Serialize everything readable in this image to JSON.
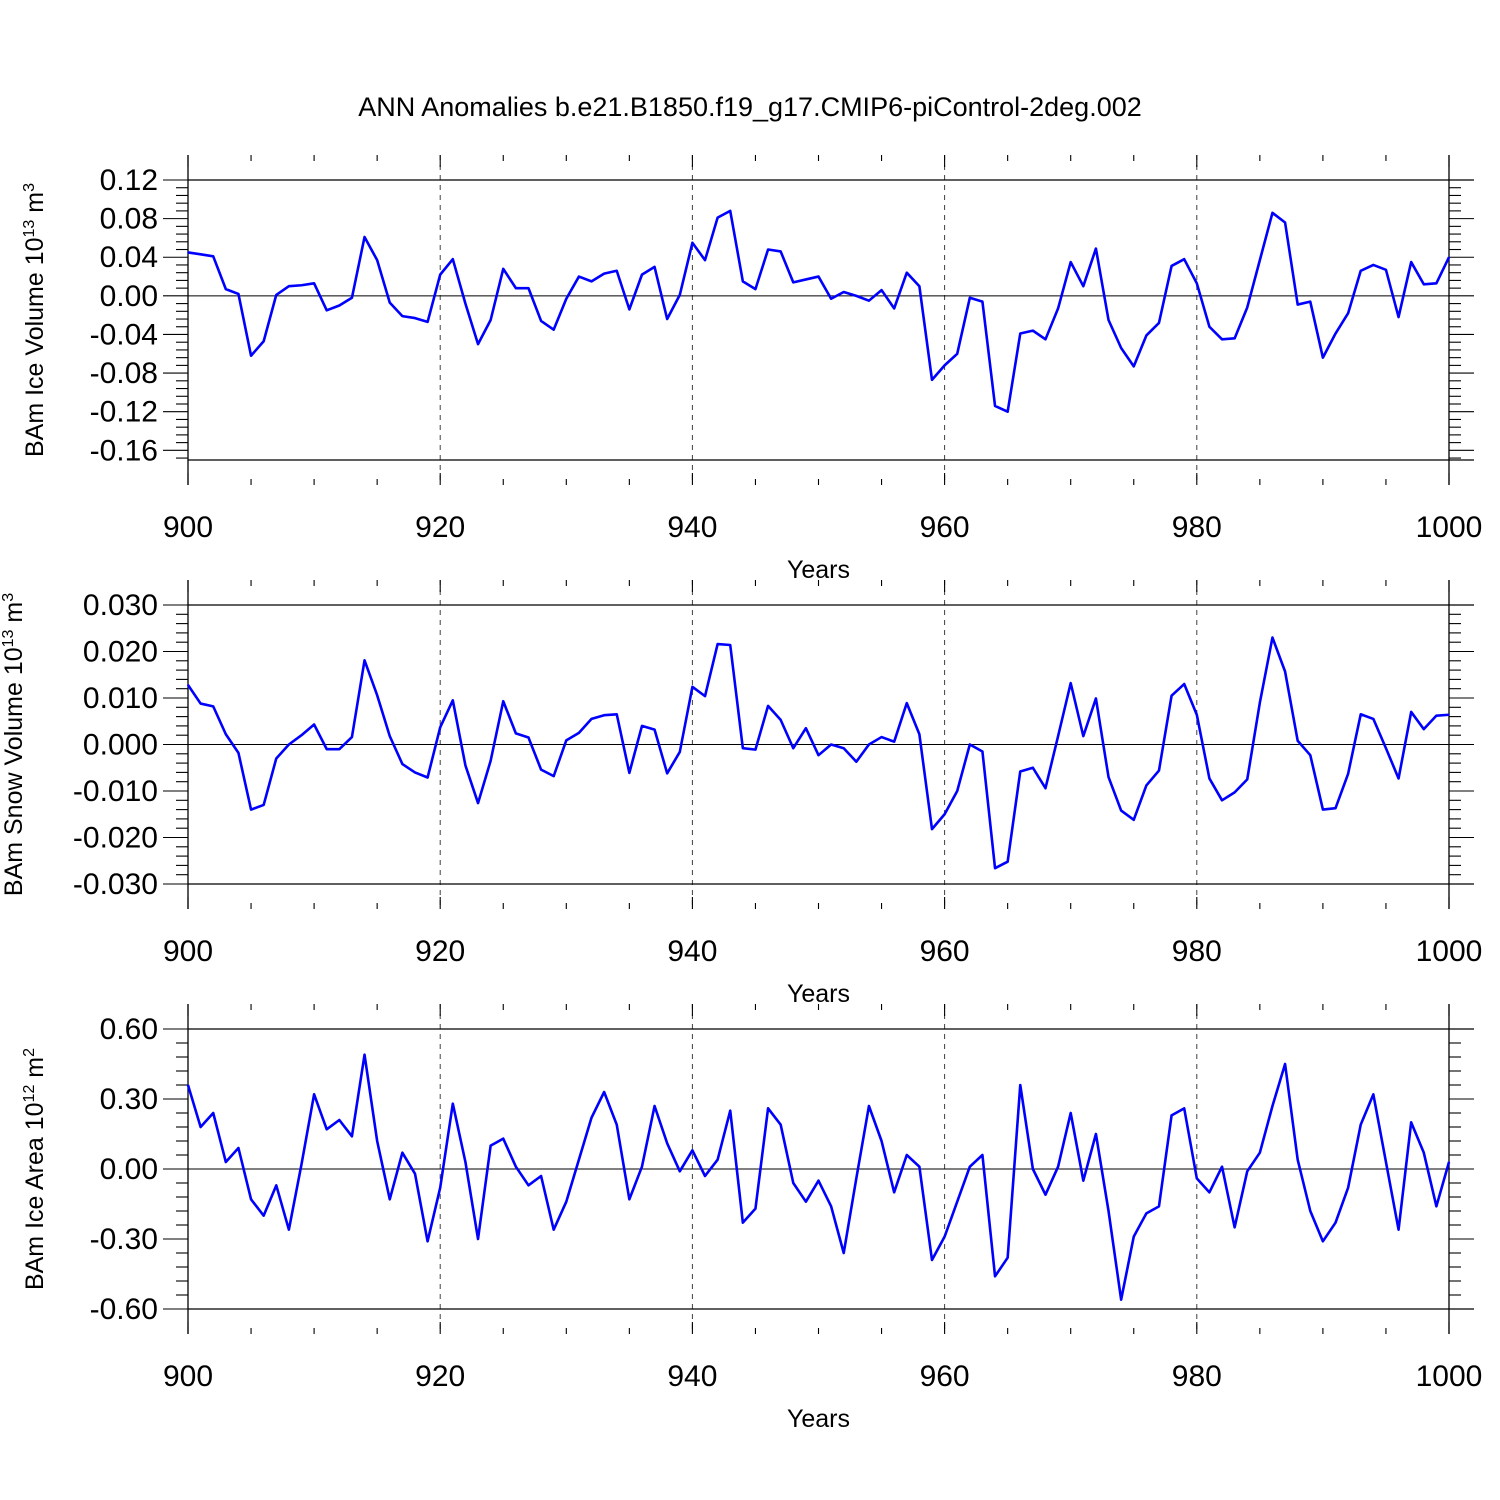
{
  "title": "ANN Anomalies b.e21.B1850.f19_g17.CMIP6-piControl-2deg.002",
  "chart_data": [
    {
      "type": "line",
      "ylabel_main": "BAm Ice Volume 10",
      "ylabel_exp": "13",
      "ylabel_unit": " m",
      "ylabel_unit_exp": "3",
      "xlabel": "Years",
      "xlim": [
        900,
        1000
      ],
      "ylim": [
        -0.17,
        0.12
      ],
      "yticks": [
        0.12,
        0.08,
        0.04,
        0.0,
        -0.04,
        -0.08,
        -0.12,
        -0.16
      ],
      "ytick_labels": [
        "0.12",
        "0.08",
        "0.04",
        "0.00",
        "-0.04",
        "-0.08",
        "-0.12",
        "-0.16"
      ],
      "xticks": [
        900,
        920,
        940,
        960,
        980,
        1000
      ],
      "xtick_labels": [
        "900",
        "920",
        "940",
        "960",
        "980",
        "1000"
      ],
      "series": [
        {
          "name": "BAm Ice Volume",
          "color": "#0000ff",
          "x_start": 900,
          "values": [
            0.045,
            0.043,
            0.041,
            0.007,
            0.002,
            -0.062,
            -0.047,
            0.001,
            0.01,
            0.011,
            0.013,
            -0.015,
            -0.01,
            -0.002,
            0.061,
            0.037,
            -0.007,
            -0.021,
            -0.023,
            -0.027,
            0.022,
            0.038,
            -0.008,
            -0.05,
            -0.025,
            0.028,
            0.008,
            0.008,
            -0.026,
            -0.035,
            -0.003,
            0.02,
            0.015,
            0.023,
            0.026,
            -0.014,
            0.022,
            0.03,
            -0.024,
            0.001,
            0.055,
            0.037,
            0.081,
            0.088,
            0.015,
            0.007,
            0.048,
            0.046,
            0.014,
            0.017,
            0.02,
            -0.003,
            0.004,
            0.0,
            -0.005,
            0.006,
            -0.013,
            0.024,
            0.01,
            -0.087,
            -0.072,
            -0.06,
            -0.002,
            -0.006,
            -0.114,
            -0.12,
            -0.039,
            -0.036,
            -0.045,
            -0.013,
            0.035,
            0.01,
            0.049,
            -0.025,
            -0.054,
            -0.073,
            -0.041,
            -0.028,
            0.031,
            0.038,
            0.013,
            -0.032,
            -0.045,
            -0.044,
            -0.012,
            0.037,
            0.086,
            0.076,
            -0.009,
            -0.006,
            -0.064,
            -0.039,
            -0.018,
            0.026,
            0.032,
            0.027,
            -0.022,
            0.035,
            0.012,
            0.013,
            0.04
          ]
        }
      ]
    },
    {
      "type": "line",
      "ylabel_main": "BAm Snow Volume 10",
      "ylabel_exp": "13",
      "ylabel_unit": " m",
      "ylabel_unit_exp": "3",
      "xlabel": "Years",
      "xlim": [
        900,
        1000
      ],
      "ylim": [
        -0.03,
        0.03
      ],
      "yticks": [
        0.03,
        0.02,
        0.01,
        0.0,
        -0.01,
        -0.02,
        -0.03
      ],
      "ytick_labels": [
        "0.030",
        "0.020",
        "0.010",
        "0.000",
        "-0.010",
        "-0.020",
        "-0.030"
      ],
      "xticks": [
        900,
        920,
        940,
        960,
        980,
        1000
      ],
      "xtick_labels": [
        "900",
        "920",
        "940",
        "960",
        "980",
        "1000"
      ],
      "series": [
        {
          "name": "BAm Snow Volume",
          "color": "#0000ff",
          "x_start": 900,
          "values": [
            0.0128,
            0.0088,
            0.0082,
            0.0022,
            -0.0018,
            -0.014,
            -0.013,
            -0.003,
            0.0,
            0.002,
            0.0043,
            -0.001,
            -0.001,
            0.0016,
            0.0181,
            0.0106,
            0.0018,
            -0.0042,
            -0.006,
            -0.0071,
            0.0037,
            0.0095,
            -0.0045,
            -0.0126,
            -0.0035,
            0.0093,
            0.0024,
            0.0015,
            -0.0054,
            -0.0068,
            0.0009,
            0.0025,
            0.0055,
            0.0063,
            0.0065,
            -0.0061,
            0.004,
            0.0032,
            -0.0062,
            -0.0016,
            0.0124,
            0.0104,
            0.0216,
            0.0214,
            -0.0008,
            -0.0011,
            0.0083,
            0.0053,
            -0.0008,
            0.0035,
            -0.0023,
            0.0,
            -0.0008,
            -0.0037,
            0.0,
            0.0016,
            0.0006,
            0.0089,
            0.0022,
            -0.0182,
            -0.015,
            -0.01,
            0.0,
            -0.0015,
            -0.0266,
            -0.0252,
            -0.0058,
            -0.005,
            -0.0094,
            0.0018,
            0.0132,
            0.0018,
            0.0099,
            -0.007,
            -0.0142,
            -0.0162,
            -0.0088,
            -0.0056,
            0.0105,
            0.013,
            0.0064,
            -0.0073,
            -0.012,
            -0.0103,
            -0.0075,
            0.009,
            0.023,
            0.0157,
            0.0008,
            -0.0023,
            -0.014,
            -0.0137,
            -0.0063,
            0.0065,
            0.0055,
            -0.0008,
            -0.0073,
            0.007,
            0.0033,
            0.0062,
            0.0064
          ]
        }
      ]
    },
    {
      "type": "line",
      "ylabel_main": "BAm Ice Area 10",
      "ylabel_exp": "12",
      "ylabel_unit": " m",
      "ylabel_unit_exp": "2",
      "xlabel": "Years",
      "xlim": [
        900,
        1000
      ],
      "ylim": [
        -0.6,
        0.6
      ],
      "yticks": [
        0.6,
        0.3,
        0.0,
        -0.3,
        -0.6
      ],
      "ytick_labels": [
        "0.60",
        "0.30",
        "0.00",
        "-0.30",
        "-0.60"
      ],
      "xticks": [
        900,
        920,
        940,
        960,
        980,
        1000
      ],
      "xtick_labels": [
        "900",
        "920",
        "940",
        "960",
        "980",
        "1000"
      ],
      "series": [
        {
          "name": "BAm Ice Area",
          "color": "#0000ff",
          "x_start": 900,
          "values": [
            0.36,
            0.18,
            0.24,
            0.03,
            0.09,
            -0.13,
            -0.2,
            -0.07,
            -0.26,
            0.02,
            0.32,
            0.17,
            0.21,
            0.14,
            0.49,
            0.12,
            -0.13,
            0.07,
            -0.02,
            -0.31,
            -0.08,
            0.28,
            0.03,
            -0.3,
            0.1,
            0.13,
            0.01,
            -0.07,
            -0.03,
            -0.26,
            -0.14,
            0.04,
            0.22,
            0.33,
            0.19,
            -0.13,
            0.01,
            0.27,
            0.11,
            -0.01,
            0.08,
            -0.03,
            0.04,
            0.25,
            -0.23,
            -0.17,
            0.26,
            0.19,
            -0.06,
            -0.14,
            -0.05,
            -0.16,
            -0.36,
            -0.04,
            0.27,
            0.12,
            -0.1,
            0.06,
            0.01,
            -0.39,
            -0.29,
            -0.14,
            0.01,
            0.06,
            -0.46,
            -0.38,
            0.36,
            0.0,
            -0.11,
            0.01,
            0.24,
            -0.05,
            0.15,
            -0.18,
            -0.56,
            -0.29,
            -0.19,
            -0.16,
            0.23,
            0.26,
            -0.04,
            -0.1,
            0.01,
            -0.25,
            -0.01,
            0.07,
            0.27,
            0.45,
            0.04,
            -0.18,
            -0.31,
            -0.23,
            -0.08,
            0.19,
            0.32,
            0.03,
            -0.26,
            0.2,
            0.07,
            -0.16,
            0.03
          ]
        }
      ]
    }
  ]
}
